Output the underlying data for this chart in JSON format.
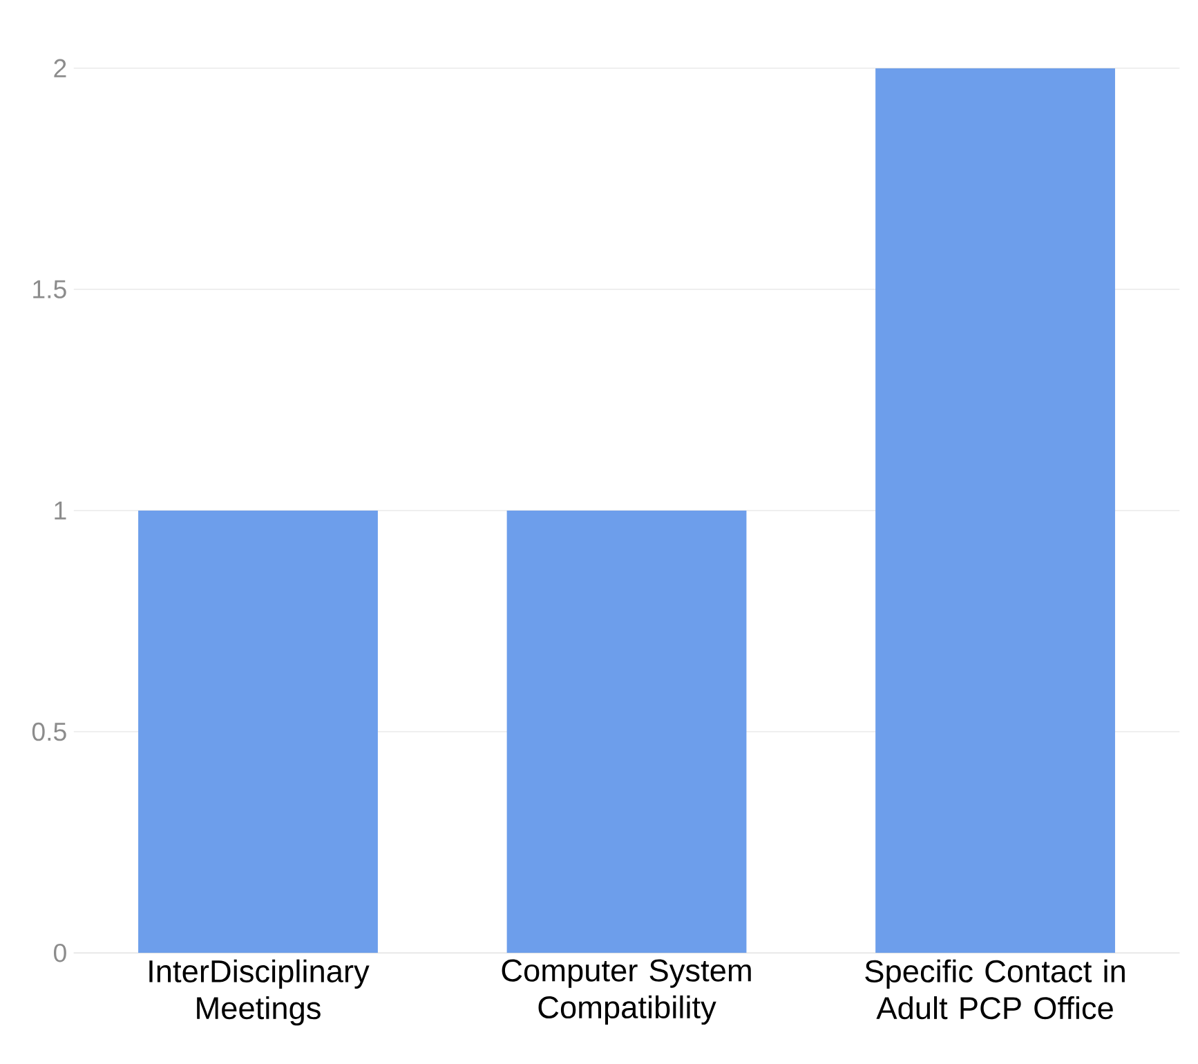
{
  "chart_data": {
    "type": "bar",
    "categories": [
      "InterDisciplinary Meetings",
      "Computer System Compatibility",
      "Specific Contact in Adult PCP Office"
    ],
    "values": [
      1,
      1,
      2
    ],
    "color": "#6d9eeb",
    "ylim": [
      0,
      2
    ],
    "yticks": [
      0,
      0.5,
      1,
      1.5,
      2
    ],
    "grid": "y"
  }
}
